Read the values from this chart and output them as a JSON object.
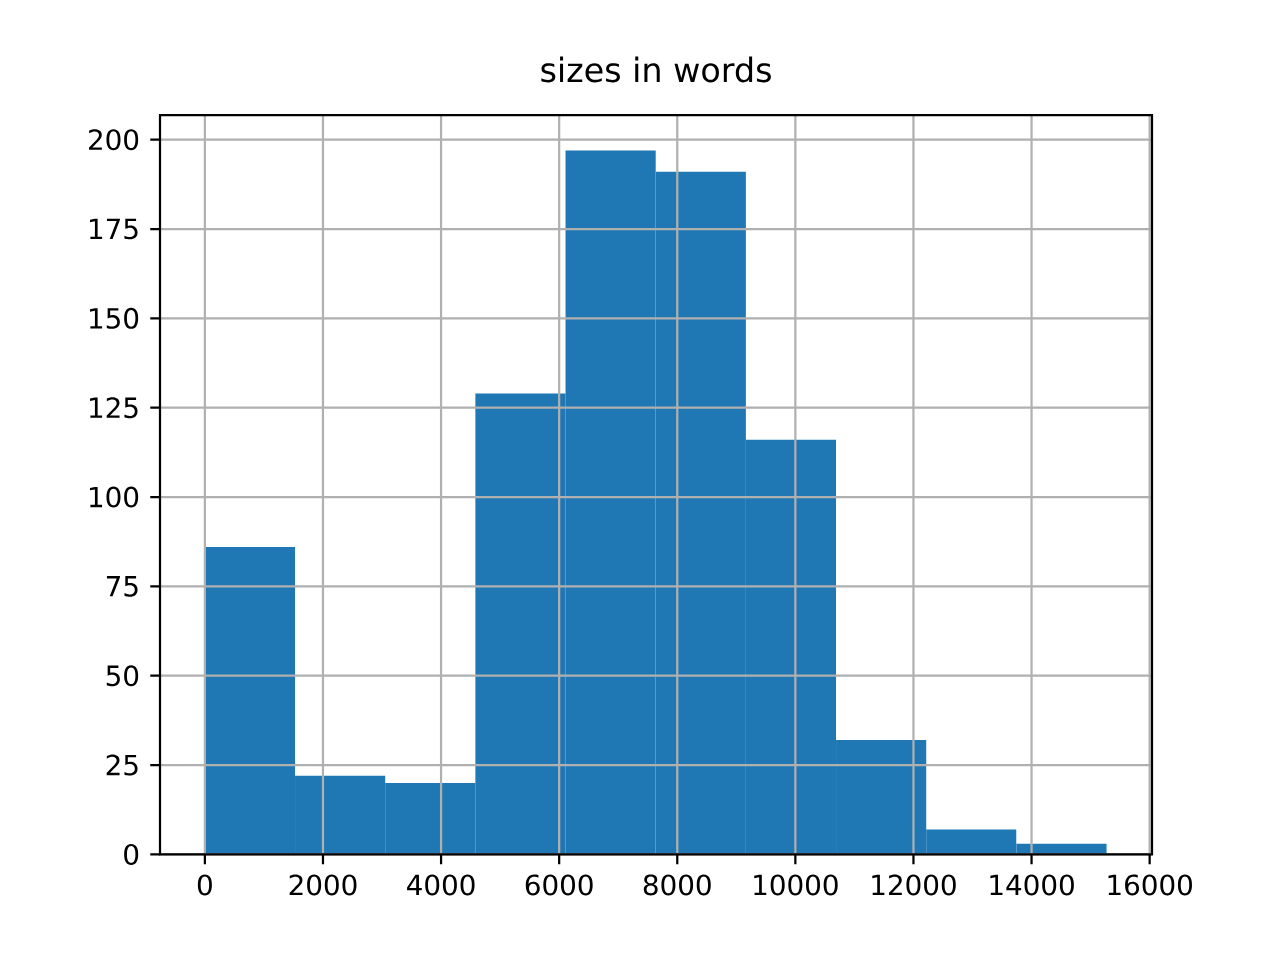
{
  "chart_data": {
    "type": "histogram",
    "title": "sizes in words",
    "bins": [
      0,
      1527,
      3054,
      4581,
      6108,
      7635,
      9162,
      10689,
      12216,
      13743,
      15270
    ],
    "values": [
      86,
      22,
      20,
      129,
      197,
      191,
      116,
      32,
      7,
      3
    ],
    "color": "#1f77b4",
    "xlim": [
      -760,
      16040
    ],
    "ylim": [
      0,
      206.85
    ],
    "xticks": [
      0,
      2000,
      4000,
      6000,
      8000,
      10000,
      12000,
      14000,
      16000
    ],
    "yticks": [
      0,
      25,
      50,
      75,
      100,
      125,
      150,
      175,
      200
    ],
    "grid": true
  }
}
